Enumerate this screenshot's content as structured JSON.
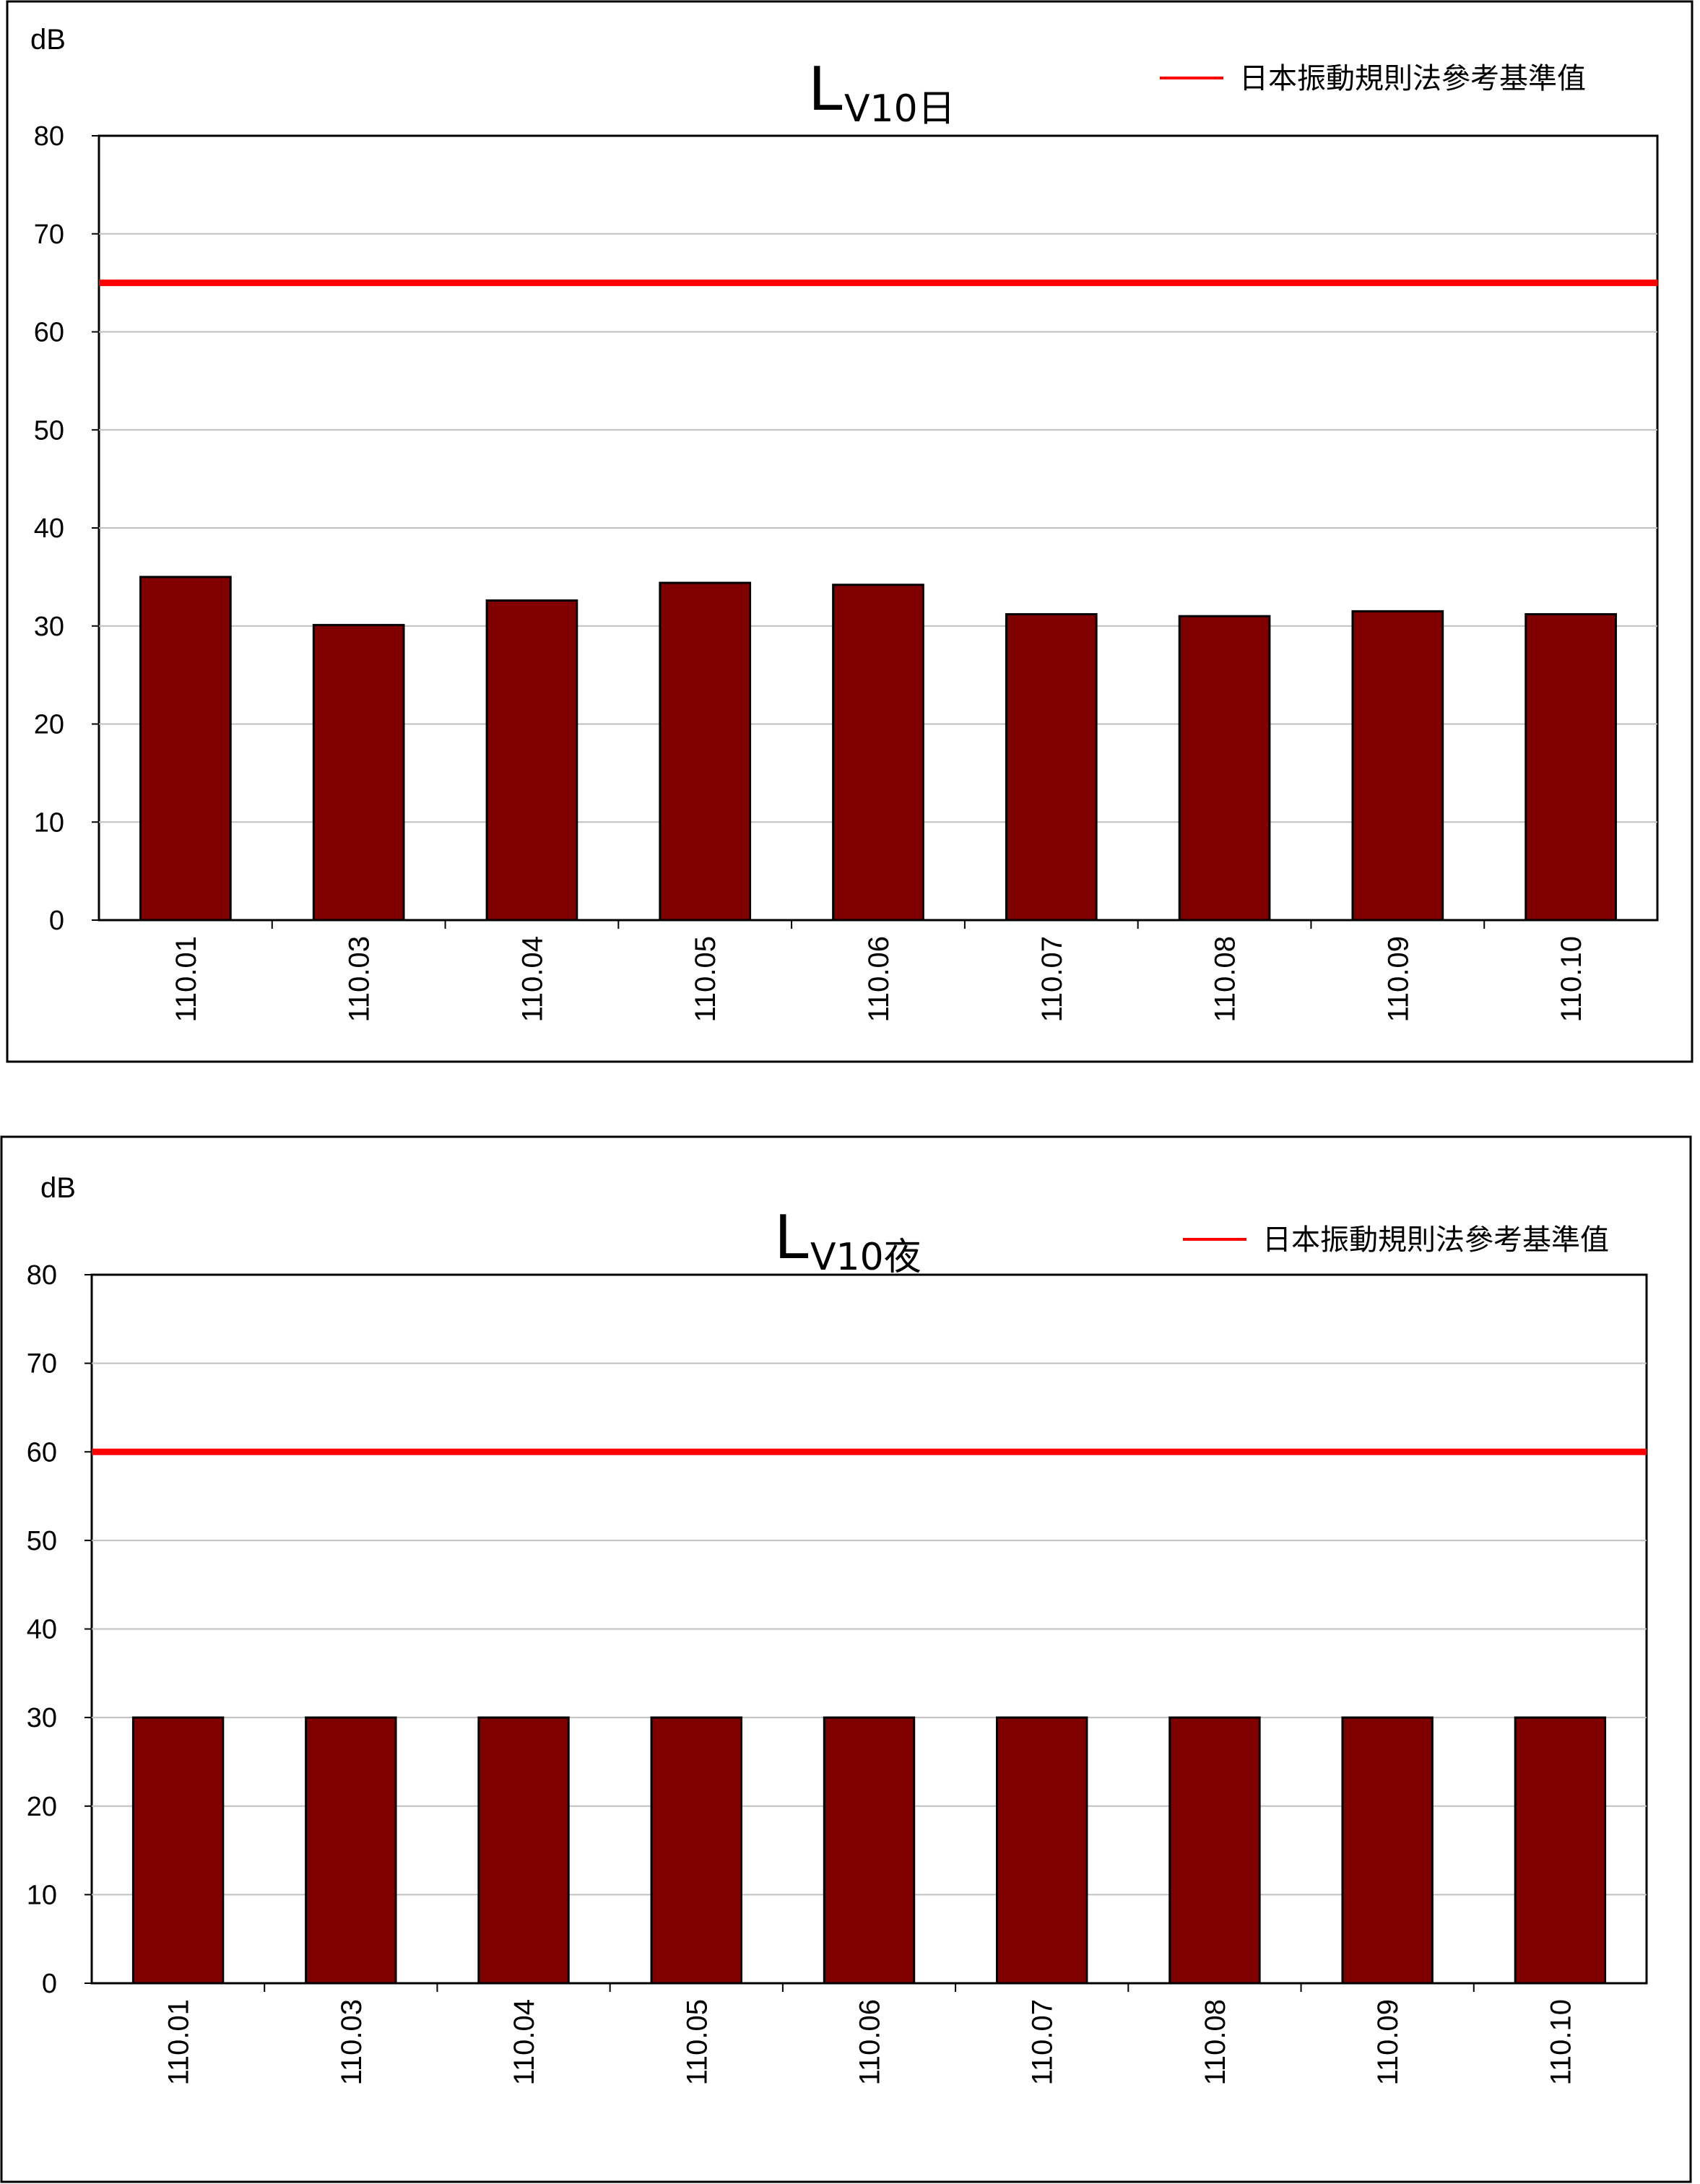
{
  "chart_data": [
    {
      "type": "bar",
      "title_main": "L",
      "title_sub": "V10日",
      "ylabel": "dB",
      "ylim": [
        0,
        80
      ],
      "yticks": [
        0,
        10,
        20,
        30,
        40,
        50,
        60,
        70,
        80
      ],
      "categories": [
        "110.01",
        "110.03",
        "110.04",
        "110.05",
        "110.06",
        "110.07",
        "110.08",
        "110.09",
        "110.10"
      ],
      "values": [
        35.0,
        30.1,
        32.6,
        34.4,
        34.2,
        31.2,
        31.0,
        31.5,
        31.2
      ],
      "bar_color": "#800000",
      "reference_line": {
        "name": "日本振動規則法參考基準值",
        "value": 65,
        "color": "#ff0000"
      },
      "grid": true,
      "legend_position": "top-right"
    },
    {
      "type": "bar",
      "title_main": "L",
      "title_sub": "V10夜",
      "ylabel": "dB",
      "ylim": [
        0,
        80
      ],
      "yticks": [
        0,
        10,
        20,
        30,
        40,
        50,
        60,
        70,
        80
      ],
      "categories": [
        "110.01",
        "110.03",
        "110.04",
        "110.05",
        "110.06",
        "110.07",
        "110.08",
        "110.09",
        "110.10"
      ],
      "values": [
        30,
        30,
        30,
        30,
        30,
        30,
        30,
        30,
        30
      ],
      "bar_color": "#800000",
      "reference_line": {
        "name": "日本振動規則法參考基準值",
        "value": 60,
        "color": "#ff0000"
      },
      "grid": true,
      "legend_position": "top-right"
    }
  ]
}
